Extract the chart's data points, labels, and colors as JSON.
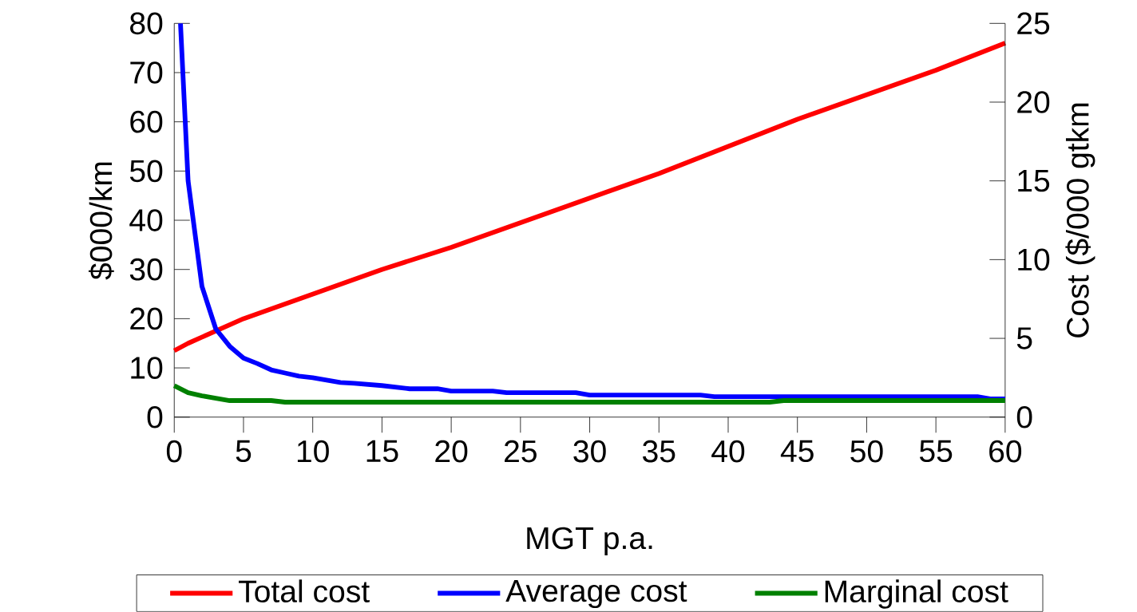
{
  "chart_data": {
    "type": "line",
    "xlabel": "MGT p.a.",
    "ylabel": "$000/km",
    "y2label": "Cost ($/000 gtkm",
    "xlim": [
      0,
      60
    ],
    "xticks": [
      0,
      5,
      10,
      15,
      20,
      25,
      30,
      35,
      40,
      45,
      50,
      55,
      60
    ],
    "ylim": [
      0,
      80
    ],
    "yticks": [
      0,
      10,
      20,
      30,
      40,
      50,
      60,
      70,
      80
    ],
    "y2lim": [
      0,
      25
    ],
    "y2ticks": [
      0,
      5,
      10,
      15,
      20,
      25
    ],
    "legend": "bottom",
    "marker": "none",
    "line_style": "solid",
    "series": [
      {
        "name": "Total cost",
        "color": "#ff0000",
        "x": [
          0,
          1,
          5,
          10,
          15,
          20,
          25,
          30,
          35,
          40,
          45,
          50,
          55,
          60
        ],
        "values": [
          13.5,
          15,
          20,
          25,
          30,
          34.5,
          39.5,
          44.5,
          49.5,
          55,
          60.5,
          65.5,
          70.5,
          76
        ]
      },
      {
        "name": "Average cost",
        "color": "#0000ff",
        "axis": "y2",
        "x": [
          0.45,
          1,
          2,
          3,
          4,
          5,
          6,
          7,
          8,
          9,
          10,
          12,
          13,
          15,
          17,
          19,
          20,
          23,
          24,
          29,
          30,
          38,
          39,
          58,
          59,
          60
        ],
        "values": [
          25,
          15,
          8.3,
          5.6,
          4.5,
          3.75,
          3.4,
          3.0,
          2.8,
          2.6,
          2.5,
          2.2,
          2.15,
          2.0,
          1.8,
          1.8,
          1.65,
          1.65,
          1.55,
          1.55,
          1.4,
          1.4,
          1.3,
          1.3,
          1.15,
          1.15
        ]
      },
      {
        "name": "Marginal cost",
        "color": "#008000",
        "axis": "y2",
        "x": [
          0,
          1,
          2,
          3,
          4,
          7,
          8,
          43,
          44,
          60
        ],
        "values": [
          2.0,
          1.55,
          1.35,
          1.2,
          1.05,
          1.05,
          0.95,
          0.95,
          1.05,
          1.05
        ]
      }
    ]
  }
}
